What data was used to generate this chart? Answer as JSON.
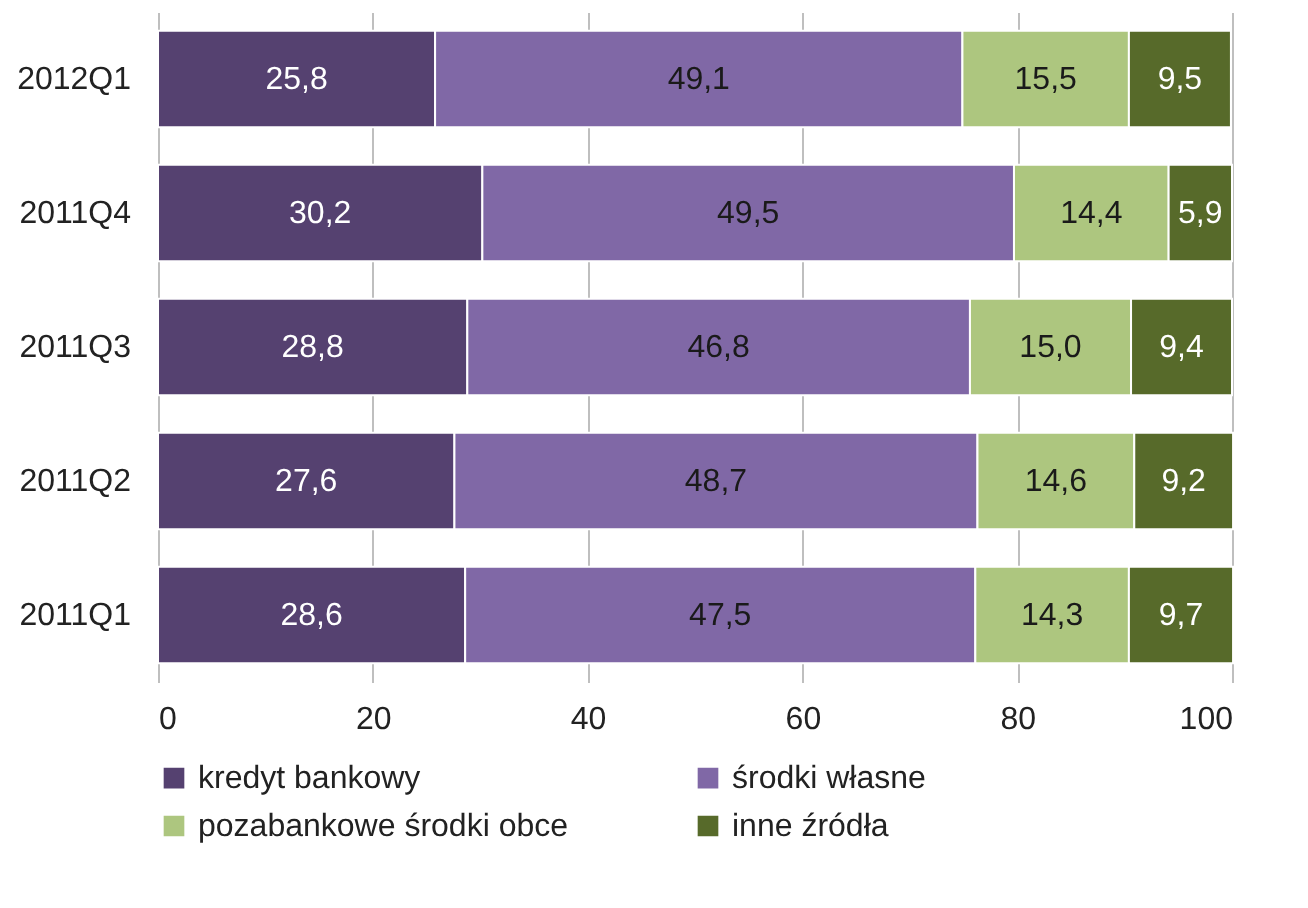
{
  "chart_data": {
    "type": "bar",
    "orientation": "horizontal",
    "stacked": true,
    "categories": [
      "2012Q1",
      "2011Q4",
      "2011Q3",
      "2011Q2",
      "2011Q1"
    ],
    "series": [
      {
        "name": "kredyt bankowy",
        "color": "#554170",
        "values": [
          25.8,
          30.2,
          28.8,
          27.6,
          28.6
        ],
        "value_labels": [
          "25,8",
          "30,2",
          "28,8",
          "27,6",
          "28,6"
        ]
      },
      {
        "name": "środki własne",
        "color": "#8068a6",
        "values": [
          49.1,
          49.5,
          46.8,
          48.7,
          47.5
        ],
        "value_labels": [
          "49,1",
          "49,5",
          "46,8",
          "48,7",
          "47,5"
        ]
      },
      {
        "name": "pozabankowe środki obce",
        "color": "#adc67f",
        "values": [
          15.5,
          14.4,
          15.0,
          14.6,
          14.3
        ],
        "value_labels": [
          "15,5",
          "14,4",
          "15,0",
          "14,6",
          "14,3"
        ]
      },
      {
        "name": "inne źródła",
        "color": "#576a2a",
        "values": [
          9.5,
          5.9,
          9.4,
          9.2,
          9.7
        ],
        "value_labels": [
          "9,5",
          "5,9",
          "9,4",
          "9,2",
          "9,7"
        ]
      }
    ],
    "xlim": [
      0,
      100
    ],
    "xticks": [
      0,
      20,
      40,
      60,
      80,
      100
    ],
    "grid": "x",
    "legend": "bottom"
  }
}
